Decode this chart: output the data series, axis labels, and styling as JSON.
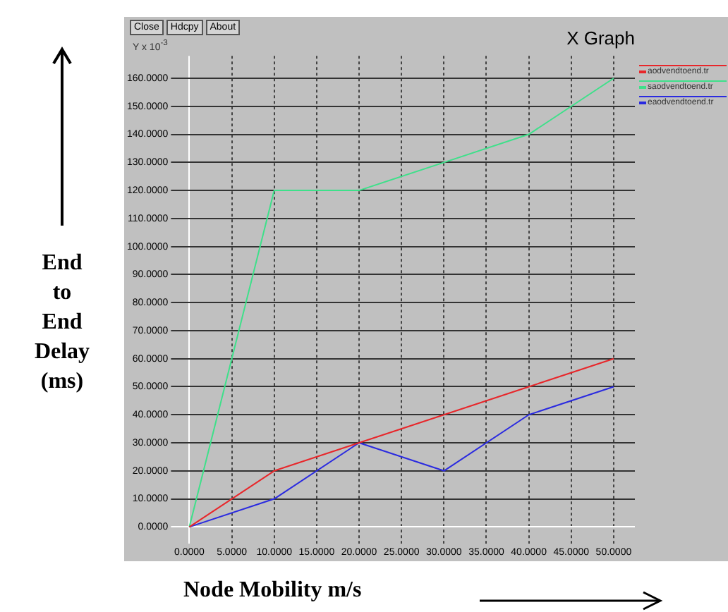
{
  "chart_data": {
    "type": "line",
    "title": "X Graph",
    "xlabel": "Node Mobility m/s",
    "ylabel": "End to End Delay (ms)",
    "annotations": [
      "Close",
      "Hdcpy",
      "About",
      "Y x 10$^{-3}$"
    ],
    "x": [
      0,
      10,
      20,
      30,
      40,
      50
    ],
    "series": [
      {
        "name": "aodvendtoend.tr",
        "color": "#e8262a",
        "values": [
          0,
          20,
          30,
          40,
          50,
          60
        ]
      },
      {
        "name": "saodvendtoend.tr",
        "color": "#3ee08a",
        "values": [
          0,
          120,
          120,
          130,
          140,
          160
        ]
      },
      {
        "name": "eaodvendtoend.tr",
        "color": "#2a2ae0",
        "values": [
          0,
          10,
          30,
          20,
          40,
          50
        ]
      }
    ],
    "xlim": [
      -1.5,
      52.5
    ],
    "ylim": [
      -6,
      168
    ],
    "xticks": [
      {
        "value": 0,
        "label": "0.0000"
      },
      {
        "value": 5,
        "label": "5.0000"
      },
      {
        "value": 10,
        "label": "10.0000"
      },
      {
        "value": 15,
        "label": "15.0000"
      },
      {
        "value": 20,
        "label": "20.0000"
      },
      {
        "value": 25,
        "label": "25.0000"
      },
      {
        "value": 30,
        "label": "30.0000"
      },
      {
        "value": 35,
        "label": "35.0000"
      },
      {
        "value": 40,
        "label": "40.0000"
      },
      {
        "value": 45,
        "label": "45.0000"
      },
      {
        "value": 50,
        "label": "50.0000"
      }
    ],
    "yticks": [
      {
        "value": 0,
        "label": "0.0000"
      },
      {
        "value": 10,
        "label": "10.0000"
      },
      {
        "value": 20,
        "label": "20.0000"
      },
      {
        "value": 30,
        "label": "30.0000"
      },
      {
        "value": 40,
        "label": "40.0000"
      },
      {
        "value": 50,
        "label": "50.0000"
      },
      {
        "value": 60,
        "label": "60.0000"
      },
      {
        "value": 70,
        "label": "70.0000"
      },
      {
        "value": 80,
        "label": "80.0000"
      },
      {
        "value": 90,
        "label": "90.0000"
      },
      {
        "value": 100,
        "label": "100.0000"
      },
      {
        "value": 110,
        "label": "110.0000"
      },
      {
        "value": 120,
        "label": "120.0000"
      },
      {
        "value": 130,
        "label": "130.0000"
      },
      {
        "value": 140,
        "label": "140.0000"
      },
      {
        "value": 150,
        "label": "150.0000"
      },
      {
        "value": 160,
        "label": "160.0000"
      }
    ],
    "grid": true,
    "legend": "top right",
    "marker": "none",
    "line_style": "solid"
  }
}
